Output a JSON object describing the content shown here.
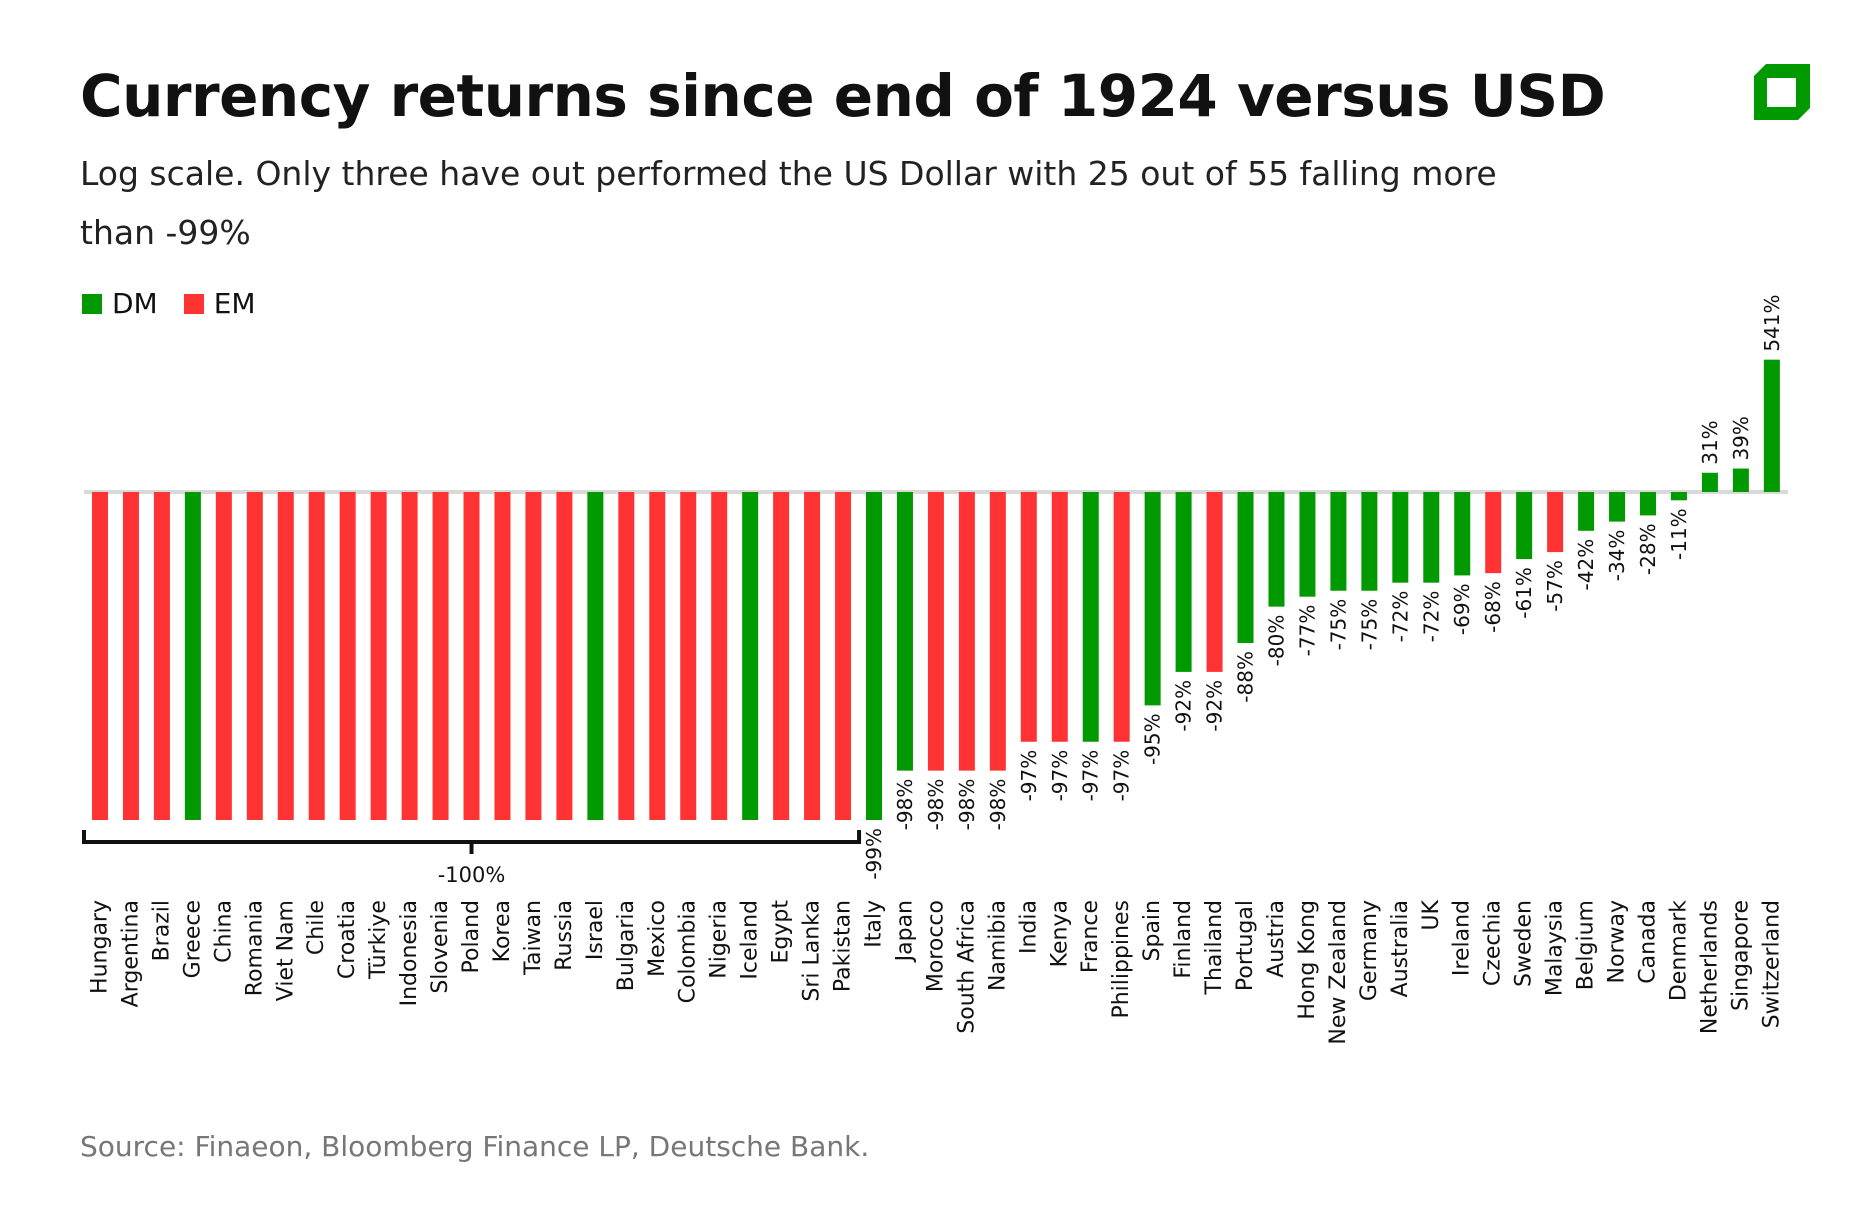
{
  "title": "Currency returns since end of 1924 versus USD",
  "subtitle": "Log scale. Only three have out performed the US Dollar with 25 out of 55 falling more than -99%",
  "source": "Source: Finaeon, Bloomberg Finance LP, Deutsche Bank.",
  "logo_icon": "deutsche-bank-logo",
  "colors": {
    "DM": "#009900",
    "EM": "#ff3333",
    "zero_line": "#d9d9d9"
  },
  "chart_data": {
    "type": "bar",
    "scale": "log (1 + return)",
    "legend": {
      "placement": "top-left",
      "entries": [
        "DM",
        "EM"
      ]
    },
    "group_label": "-100%",
    "group_count": 25,
    "categories": [
      "Hungary",
      "Argentina",
      "Brazil",
      "Greece",
      "China",
      "Romania",
      "Viet Nam",
      "Chile",
      "Croatia",
      "Türkiye",
      "Indonesia",
      "Slovenia",
      "Poland",
      "Korea",
      "Taiwan",
      "Russia",
      "Israel",
      "Bulgaria",
      "Mexico",
      "Colombia",
      "Nigeria",
      "Iceland",
      "Egypt",
      "Sri Lanka",
      "Pakistan",
      "Italy",
      "Japan",
      "Morocco",
      "South Africa",
      "Namibia",
      "India",
      "Kenya",
      "France",
      "Philippines",
      "Spain",
      "Finland",
      "Thailand",
      "Portugal",
      "Austria",
      "Hong Kong",
      "New Zealand",
      "Germany",
      "Australia",
      "UK",
      "Ireland",
      "Czechia",
      "Sweden",
      "Malaysia",
      "Belgium",
      "Norway",
      "Canada",
      "Denmark",
      "Netherlands",
      "Singapore",
      "Switzerland"
    ],
    "groups": [
      "EM",
      "EM",
      "EM",
      "DM",
      "EM",
      "EM",
      "EM",
      "EM",
      "EM",
      "EM",
      "EM",
      "EM",
      "EM",
      "EM",
      "EM",
      "EM",
      "DM",
      "EM",
      "EM",
      "EM",
      "EM",
      "DM",
      "EM",
      "EM",
      "EM",
      "DM",
      "DM",
      "EM",
      "EM",
      "EM",
      "EM",
      "EM",
      "DM",
      "EM",
      "DM",
      "DM",
      "EM",
      "DM",
      "DM",
      "DM",
      "DM",
      "DM",
      "DM",
      "DM",
      "DM",
      "EM",
      "DM",
      "EM",
      "DM",
      "DM",
      "DM",
      "DM",
      "DM",
      "DM",
      "DM"
    ],
    "values": [
      -100,
      -100,
      -100,
      -100,
      -100,
      -100,
      -100,
      -100,
      -100,
      -100,
      -100,
      -100,
      -100,
      -100,
      -100,
      -100,
      -100,
      -100,
      -100,
      -100,
      -100,
      -100,
      -100,
      -100,
      -100,
      -99,
      -98,
      -98,
      -98,
      -98,
      -97,
      -97,
      -97,
      -97,
      -95,
      -92,
      -92,
      -88,
      -80,
      -77,
      -75,
      -75,
      -72,
      -72,
      -69,
      -68,
      -61,
      -57,
      -42,
      -34,
      -28,
      -11,
      31,
      39,
      541
    ],
    "data_labels": [
      "",
      "",
      "",
      "",
      "",
      "",
      "",
      "",
      "",
      "",
      "",
      "",
      "",
      "",
      "",
      "",
      "",
      "",
      "",
      "",
      "",
      "",
      "",
      "",
      "",
      "-99%",
      "-98%",
      "-98%",
      "-98%",
      "-98%",
      "-97%",
      "-97%",
      "-97%",
      "-97%",
      "-95%",
      "-92%",
      "-92%",
      "-88%",
      "-80%",
      "-77%",
      "-75%",
      "-75%",
      "-72%",
      "-72%",
      "-69%",
      "-68%",
      "-61%",
      "-57%",
      "-42%",
      "-34%",
      "-28%",
      "-11%",
      "31%",
      "39%",
      "541%"
    ],
    "units": "%"
  }
}
